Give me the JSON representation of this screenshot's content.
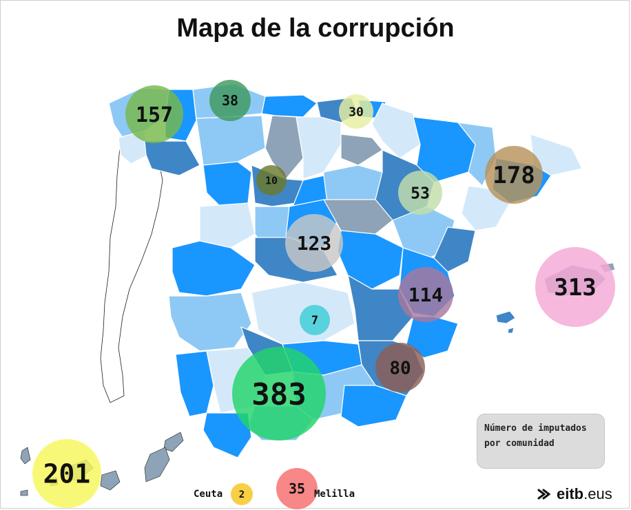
{
  "title": "Mapa de la corrupción",
  "legend": {
    "line1": "Número de imputados",
    "line2": "por comunidad"
  },
  "ceuta_label": "Ceuta",
  "melilla_label": "Melilla",
  "logo": {
    "brand": "eitb",
    "suffix": ".eus"
  },
  "colors": {
    "dark_blue": "#3f86c6",
    "mid_blue": "#1a96ff",
    "light_blue": "#8ec9f5",
    "pale_blue": "#d3e9fa",
    "grey": "#8ea3b7",
    "outline": "#1a1a1a"
  },
  "bubbles": [
    {
      "region": "Galicia",
      "value": "157",
      "color": "#78b84a"
    },
    {
      "region": "Asturias",
      "value": "38",
      "color": "#3f9a5e"
    },
    {
      "region": "País Vasco",
      "value": "30",
      "color": "#e7eea0"
    },
    {
      "region": "Cataluña",
      "value": "178",
      "color": "#b7935a"
    },
    {
      "region": "Castilla y León",
      "value": "10",
      "color": "#6b7a2b"
    },
    {
      "region": "Aragón",
      "value": "53",
      "color": "#c2deaa"
    },
    {
      "region": "Madrid",
      "value": "123",
      "color": "#c8c8c8"
    },
    {
      "region": "Comunidad Valenciana",
      "value": "114",
      "color": "#a7799e"
    },
    {
      "region": "Baleares",
      "value": "313",
      "color": "#f5a8d6"
    },
    {
      "region": "Castilla-La Mancha",
      "value": "7",
      "color": "#3dcdd6"
    },
    {
      "region": "Murcia",
      "value": "80",
      "color": "#8e5e55"
    },
    {
      "region": "Andalucía",
      "value": "383",
      "color": "#22d46a"
    },
    {
      "region": "Canarias",
      "value": "201",
      "color": "#f6f65a"
    },
    {
      "region": "Ceuta",
      "value": "2",
      "color": "#f7c41c"
    },
    {
      "region": "Melilla",
      "value": "35",
      "color": "#f66d6d"
    }
  ]
}
